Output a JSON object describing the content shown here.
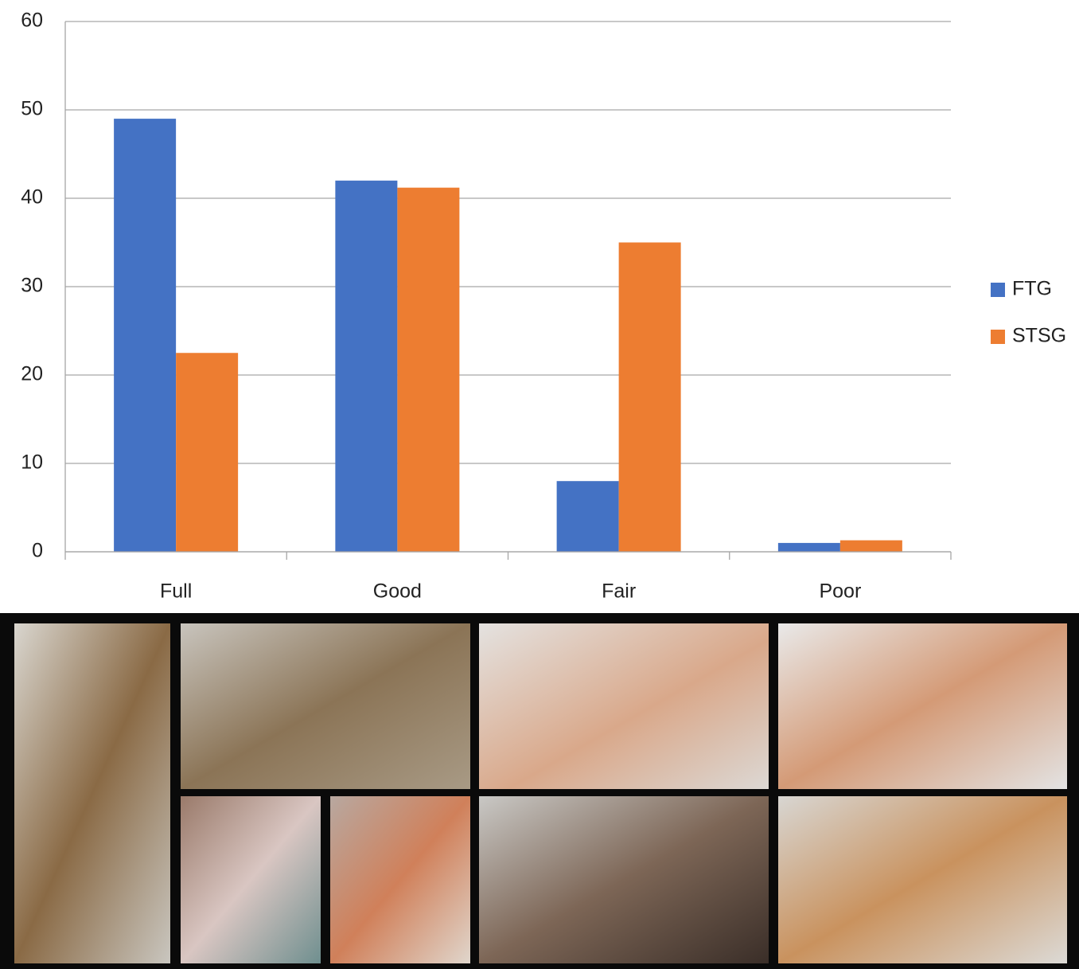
{
  "chart_data": {
    "type": "bar",
    "categories": [
      "Full",
      "Good",
      "Fair",
      "Poor"
    ],
    "series": [
      {
        "name": "FTG",
        "color": "#4472c4",
        "values": [
          49,
          42,
          8,
          1
        ]
      },
      {
        "name": "STSG",
        "color": "#ed7d31",
        "values": [
          22.5,
          41.2,
          35,
          1.3
        ]
      }
    ],
    "ylim": [
      0,
      60
    ],
    "yticks": [
      0,
      10,
      20,
      30,
      40,
      50,
      60
    ],
    "grid": true,
    "legend": "right"
  }
}
